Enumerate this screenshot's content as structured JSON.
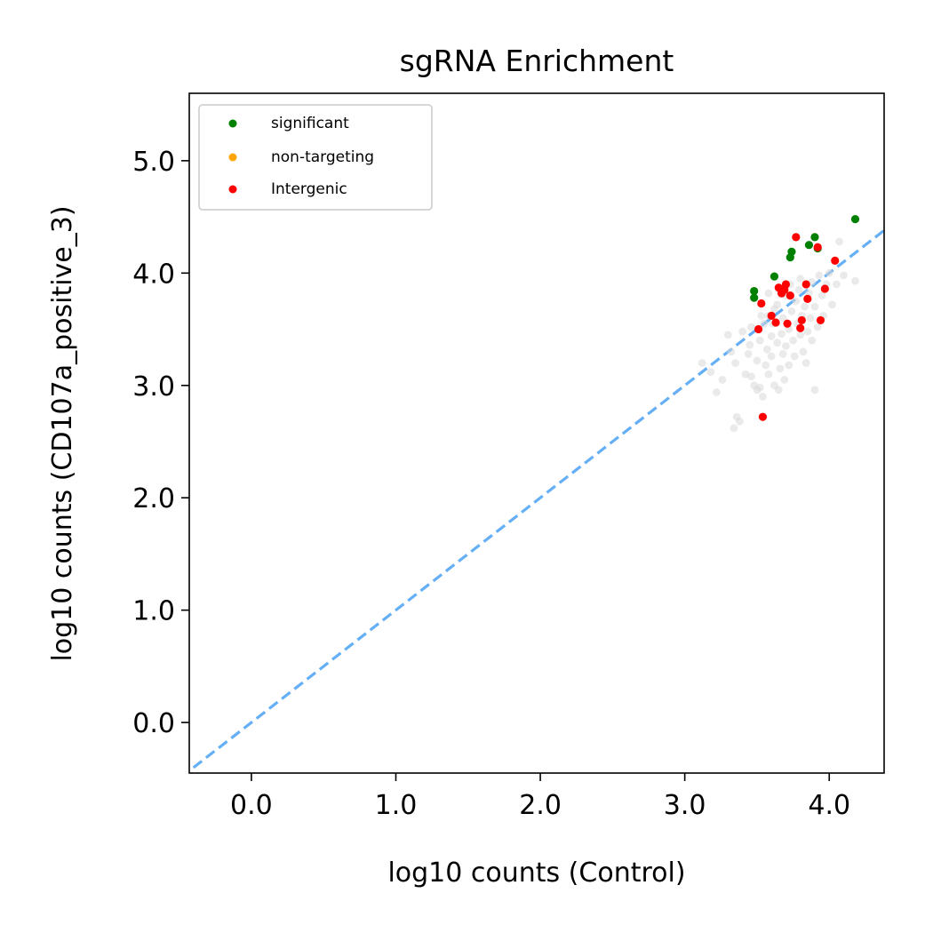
{
  "chart_data": {
    "type": "scatter",
    "title": "sgRNA Enrichment",
    "xlabel": "log10 counts (Control)",
    "ylabel": "log10 counts (CD107a_positive_3)",
    "xlim": [
      -0.43,
      4.38
    ],
    "ylim": [
      -0.45,
      5.6
    ],
    "xticks": [
      0.0,
      1.0,
      2.0,
      3.0,
      4.0
    ],
    "yticks": [
      0.0,
      1.0,
      2.0,
      3.0,
      4.0,
      5.0
    ],
    "xtick_labels": [
      "0.0",
      "1.0",
      "2.0",
      "3.0",
      "4.0"
    ],
    "ytick_labels": [
      "0.0",
      "1.0",
      "2.0",
      "3.0",
      "4.0",
      "5.0"
    ],
    "grid": false,
    "legend_position": "top-left",
    "diagonal": {
      "style": "dashed",
      "color": "#64aff5"
    },
    "series": [
      {
        "name": "background",
        "color": "#d9d9d9",
        "points": [
          [
            3.12,
            3.2
          ],
          [
            3.18,
            3.12
          ],
          [
            3.22,
            2.94
          ],
          [
            3.26,
            3.05
          ],
          [
            3.3,
            3.45
          ],
          [
            3.32,
            3.3
          ],
          [
            3.34,
            2.62
          ],
          [
            3.36,
            2.72
          ],
          [
            3.38,
            2.68
          ],
          [
            3.35,
            3.2
          ],
          [
            3.4,
            3.48
          ],
          [
            3.42,
            3.1
          ],
          [
            3.44,
            3.28
          ],
          [
            3.45,
            3.36
          ],
          [
            3.46,
            3.52
          ],
          [
            3.48,
            3.0
          ],
          [
            3.5,
            3.22
          ],
          [
            3.52,
            3.4
          ],
          [
            3.52,
            2.98
          ],
          [
            3.54,
            2.9
          ],
          [
            3.55,
            3.55
          ],
          [
            3.56,
            3.18
          ],
          [
            3.57,
            3.32
          ],
          [
            3.58,
            3.1
          ],
          [
            3.58,
            3.62
          ],
          [
            3.6,
            3.44
          ],
          [
            3.6,
            3.26
          ],
          [
            3.62,
            3.0
          ],
          [
            3.62,
            3.68
          ],
          [
            3.64,
            3.38
          ],
          [
            3.64,
            3.72
          ],
          [
            3.65,
            2.96
          ],
          [
            3.66,
            3.15
          ],
          [
            3.67,
            3.46
          ],
          [
            3.68,
            3.28
          ],
          [
            3.68,
            3.6
          ],
          [
            3.69,
            3.05
          ],
          [
            3.7,
            3.8
          ],
          [
            3.7,
            3.35
          ],
          [
            3.72,
            3.5
          ],
          [
            3.72,
            3.18
          ],
          [
            3.73,
            3.9
          ],
          [
            3.74,
            3.66
          ],
          [
            3.75,
            3.4
          ],
          [
            3.76,
            3.26
          ],
          [
            3.77,
            3.75
          ],
          [
            3.78,
            3.55
          ],
          [
            3.79,
            3.85
          ],
          [
            3.8,
            3.45
          ],
          [
            3.8,
            3.95
          ],
          [
            3.81,
            3.62
          ],
          [
            3.82,
            3.3
          ],
          [
            3.83,
            3.7
          ],
          [
            3.84,
            3.2
          ],
          [
            3.85,
            3.48
          ],
          [
            3.86,
            3.82
          ],
          [
            3.87,
            3.6
          ],
          [
            3.88,
            3.92
          ],
          [
            3.88,
            3.4
          ],
          [
            3.9,
            2.96
          ],
          [
            3.9,
            3.7
          ],
          [
            3.92,
            3.52
          ],
          [
            3.93,
            3.98
          ],
          [
            3.95,
            3.8
          ],
          [
            3.96,
            3.62
          ],
          [
            3.98,
            3.9
          ],
          [
            4.0,
            4.0
          ],
          [
            4.02,
            3.72
          ],
          [
            4.05,
            3.9
          ],
          [
            4.07,
            4.28
          ],
          [
            4.1,
            3.98
          ],
          [
            4.18,
            3.93
          ],
          [
            3.46,
            3.08
          ],
          [
            3.5,
            2.96
          ],
          [
            3.53,
            3.62
          ],
          [
            3.58,
            3.82
          ],
          [
            3.61,
            3.55
          ],
          [
            3.66,
            3.85
          ]
        ]
      },
      {
        "name": "significant",
        "color": "#008000",
        "points": [
          [
            3.48,
            3.84
          ],
          [
            3.48,
            3.78
          ],
          [
            3.62,
            3.97
          ],
          [
            3.73,
            4.14
          ],
          [
            3.74,
            4.19
          ],
          [
            3.86,
            4.25
          ],
          [
            3.9,
            4.32
          ],
          [
            3.92,
            4.22
          ],
          [
            4.18,
            4.48
          ]
        ]
      },
      {
        "name": "non-targeting",
        "color": "#ffa500",
        "points": []
      },
      {
        "name": "Intergenic",
        "color": "#ff0000",
        "points": [
          [
            3.51,
            3.5
          ],
          [
            3.53,
            3.73
          ],
          [
            3.54,
            2.72
          ],
          [
            3.6,
            3.62
          ],
          [
            3.63,
            3.56
          ],
          [
            3.65,
            3.87
          ],
          [
            3.67,
            3.82
          ],
          [
            3.69,
            3.85
          ],
          [
            3.7,
            3.9
          ],
          [
            3.71,
            3.55
          ],
          [
            3.73,
            3.8
          ],
          [
            3.77,
            4.32
          ],
          [
            3.8,
            3.51
          ],
          [
            3.81,
            3.58
          ],
          [
            3.84,
            3.9
          ],
          [
            3.85,
            3.77
          ],
          [
            3.92,
            4.23
          ],
          [
            3.94,
            3.58
          ],
          [
            3.97,
            3.86
          ],
          [
            4.04,
            4.11
          ]
        ]
      }
    ]
  }
}
